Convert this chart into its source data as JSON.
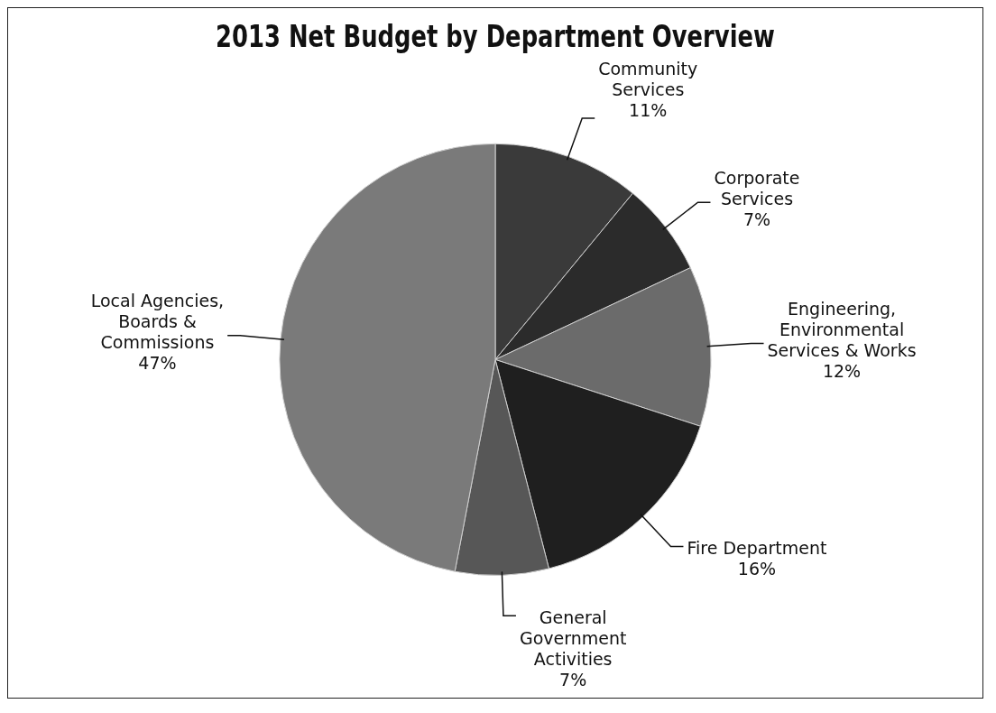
{
  "chart_data": {
    "type": "pie",
    "title": "2013 Net Budget by Department Overview",
    "categories": [
      "Community Services",
      "Corporate Services",
      "Engineering, Environmental Services & Works",
      "Fire Department",
      "General Government Activities",
      "Local Agencies, Boards & Commissions"
    ],
    "values": [
      11,
      7,
      12,
      16,
      7,
      47
    ],
    "colors": [
      "#3a3a3a",
      "#2b2b2b",
      "#6b6b6b",
      "#1f1f1f",
      "#575757",
      "#7a7a7a"
    ],
    "value_labels": [
      "11%",
      "7%",
      "12%",
      "16%",
      "7%",
      "47%"
    ],
    "legend": false
  }
}
